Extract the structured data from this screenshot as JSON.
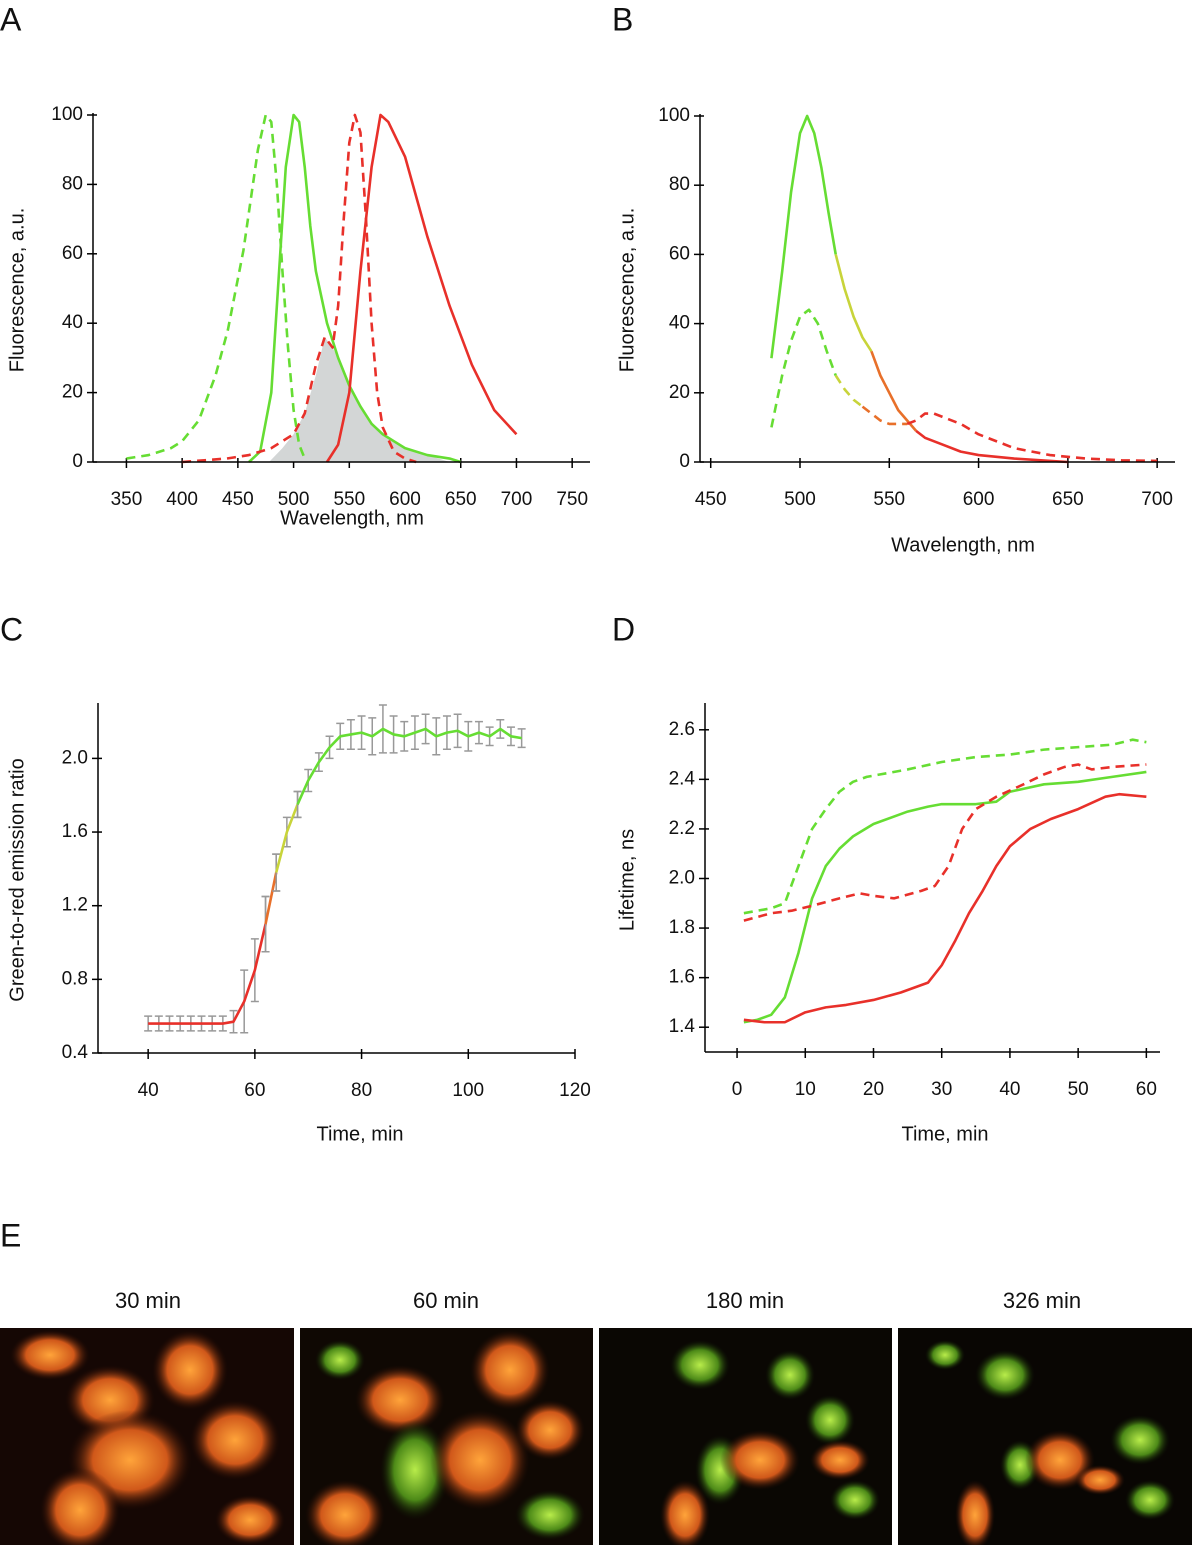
{
  "chart_data": [
    {
      "type": "line",
      "panel": "A",
      "xlabel": "Wavelength, nm",
      "ylabel": "Fluorescence, a.u.",
      "xlim": [
        320,
        766
      ],
      "ylim": [
        0,
        100
      ],
      "xticks": [
        350,
        400,
        450,
        500,
        550,
        600,
        650,
        700,
        750
      ],
      "yticks": [
        0,
        20,
        40,
        60,
        80,
        100
      ],
      "series": [
        {
          "color": "#d3d6d6",
          "fill": true,
          "x": [
            478,
            490,
            500,
            510,
            520,
            528,
            535,
            540,
            550,
            560,
            570,
            580,
            590,
            600,
            620,
            640
          ],
          "values": [
            0,
            4,
            8,
            14,
            25,
            36,
            33,
            30,
            22,
            16,
            11,
            8,
            6,
            4,
            2,
            0
          ]
        },
        {
          "color": "#66dd33",
          "dash": true,
          "x": [
            350,
            370,
            390,
            400,
            415,
            430,
            441,
            455,
            468,
            475,
            480,
            485,
            490,
            495,
            500,
            505,
            510
          ],
          "values": [
            1,
            2,
            4,
            6,
            12,
            25,
            38,
            61,
            90,
            100,
            98,
            80,
            55,
            33,
            15,
            5,
            1
          ]
        },
        {
          "color": "#66dd33",
          "x": [
            460,
            470,
            480,
            487,
            493,
            500,
            505,
            510,
            515,
            520,
            530,
            540,
            550,
            560,
            570,
            580,
            590,
            600,
            620,
            640,
            650
          ],
          "values": [
            0,
            3,
            20,
            55,
            85,
            100,
            98,
            85,
            68,
            55,
            40,
            30,
            22,
            16,
            11,
            8,
            6,
            4,
            2,
            1,
            0
          ]
        },
        {
          "color": "#e8302a",
          "dash": true,
          "x": [
            400,
            440,
            460,
            480,
            500,
            510,
            520,
            528,
            535,
            540,
            545,
            550,
            555,
            560,
            565,
            570,
            575,
            580,
            590,
            600,
            610
          ],
          "values": [
            0,
            1,
            2,
            4,
            8,
            14,
            28,
            36,
            33,
            45,
            70,
            92,
            100,
            95,
            70,
            40,
            20,
            10,
            3,
            1,
            0
          ]
        },
        {
          "color": "#e8302a",
          "x": [
            530,
            540,
            550,
            560,
            570,
            578,
            585,
            600,
            620,
            640,
            660,
            680,
            700
          ],
          "values": [
            0,
            5,
            20,
            55,
            85,
            100,
            98,
            88,
            65,
            45,
            28,
            15,
            8
          ]
        }
      ]
    },
    {
      "type": "line",
      "panel": "B",
      "xlabel": "Wavelength, nm",
      "ylabel": "Fluorescence, a.u.",
      "xlim": [
        444,
        710
      ],
      "ylim": [
        0,
        100
      ],
      "xticks": [
        450,
        500,
        550,
        600,
        650,
        700
      ],
      "yticks": [
        0,
        20,
        40,
        60,
        80,
        100
      ],
      "series": [
        {
          "color": "#66dd33",
          "x": [
            484,
            490,
            495,
            500,
            504,
            508,
            512,
            516,
            520
          ],
          "values": [
            30,
            55,
            78,
            95,
            100,
            95,
            85,
            72,
            60
          ]
        },
        {
          "color": "#c8d43a",
          "x": [
            520,
            525,
            530,
            535,
            540
          ],
          "values": [
            60,
            50,
            42,
            36,
            32
          ]
        },
        {
          "color": "#e8702a",
          "x": [
            540,
            545,
            550,
            555,
            560,
            565
          ],
          "values": [
            32,
            25,
            20,
            15,
            12,
            9
          ]
        },
        {
          "color": "#e8302a",
          "x": [
            565,
            570,
            580,
            590,
            600,
            620,
            650
          ],
          "values": [
            9,
            7,
            5,
            3,
            2,
            1,
            0
          ]
        },
        {
          "color": "#66dd33",
          "dash": true,
          "x": [
            484,
            490,
            495,
            500,
            505,
            510,
            515,
            520
          ],
          "values": [
            10,
            25,
            35,
            42,
            44,
            40,
            32,
            25
          ]
        },
        {
          "color": "#c8d43a",
          "dash": true,
          "x": [
            520,
            525,
            530,
            535
          ],
          "values": [
            25,
            21,
            18,
            16
          ]
        },
        {
          "color": "#e8702a",
          "dash": true,
          "x": [
            535,
            540,
            545,
            550,
            555,
            560
          ],
          "values": [
            16,
            14,
            12,
            11,
            11,
            11
          ]
        },
        {
          "color": "#e8302a",
          "dash": true,
          "x": [
            560,
            565,
            570,
            575,
            580,
            590,
            600,
            620,
            640,
            660,
            680,
            700
          ],
          "values": [
            11,
            12,
            14,
            14,
            13,
            11,
            8,
            4,
            2,
            1,
            0.5,
            0.3
          ]
        }
      ]
    },
    {
      "type": "line",
      "panel": "C",
      "xlabel": "Time, min",
      "ylabel": "Green-to-red emission ratio",
      "xlim": [
        30.6,
        120
      ],
      "ylim": [
        0.4,
        2.29
      ],
      "error_color": "#999999",
      "xticks": [
        40,
        60,
        80,
        100,
        120
      ],
      "yticks": [
        0.4,
        0.8,
        1.2,
        1.6,
        {
          "value": 2,
          "label": "2.0"
        }
      ],
      "series": [
        {
          "color": "#e8302a",
          "x": [
            40,
            42,
            44,
            46,
            48,
            50,
            52,
            54,
            56,
            58,
            60,
            62
          ],
          "values": [
            0.56,
            0.56,
            0.56,
            0.56,
            0.56,
            0.56,
            0.56,
            0.56,
            0.57,
            0.68,
            0.85,
            1.1
          ],
          "errors": [
            0.04,
            0.04,
            0.04,
            0.04,
            0.04,
            0.04,
            0.04,
            0.04,
            0.06,
            0.17,
            0.17,
            0.15
          ]
        },
        {
          "color": "#e8702a",
          "x": [
            62,
            64
          ],
          "values": [
            1.1,
            1.38
          ],
          "errors": [
            0.15,
            0.1
          ]
        },
        {
          "color": "#c8d43a",
          "x": [
            64,
            66,
            68
          ],
          "values": [
            1.38,
            1.6,
            1.75
          ],
          "errors": [
            0.1,
            0.08,
            0.07
          ]
        },
        {
          "color": "#66dd33",
          "x": [
            68,
            70,
            72,
            74,
            76,
            78,
            80,
            82,
            84,
            86,
            88,
            90,
            92,
            94,
            96,
            98,
            100,
            102,
            104,
            106,
            108,
            110
          ],
          "values": [
            1.75,
            1.88,
            1.98,
            2.06,
            2.12,
            2.13,
            2.14,
            2.12,
            2.16,
            2.13,
            2.12,
            2.14,
            2.16,
            2.12,
            2.14,
            2.15,
            2.12,
            2.14,
            2.12,
            2.16,
            2.12,
            2.11
          ],
          "errors": [
            0.07,
            0.06,
            0.05,
            0.06,
            0.07,
            0.08,
            0.09,
            0.1,
            0.13,
            0.1,
            0.08,
            0.09,
            0.08,
            0.1,
            0.09,
            0.09,
            0.08,
            0.06,
            0.05,
            0.05,
            0.05,
            0.05
          ]
        }
      ]
    },
    {
      "type": "line",
      "panel": "D",
      "xlabel": "Time, min",
      "ylabel": "Lifetime, ns",
      "xlim": [
        -4.7,
        62
      ],
      "ylim": [
        1.3,
        2.7
      ],
      "xticks": [
        0,
        10,
        20,
        30,
        40,
        50,
        60
      ],
      "yticks": [
        1.4,
        1.6,
        1.8,
        {
          "value": 2,
          "label": "2.0"
        },
        2.2,
        2.4,
        2.6
      ],
      "series": [
        {
          "color": "#66dd33",
          "dash": true,
          "x": [
            1,
            3,
            5,
            7,
            9,
            11,
            13,
            15,
            17,
            19,
            21,
            25,
            30,
            35,
            40,
            45,
            50,
            55,
            58,
            60
          ],
          "values": [
            1.86,
            1.87,
            1.88,
            1.9,
            2.05,
            2.2,
            2.28,
            2.35,
            2.39,
            2.41,
            2.42,
            2.44,
            2.47,
            2.49,
            2.5,
            2.52,
            2.53,
            2.54,
            2.56,
            2.55
          ]
        },
        {
          "color": "#66dd33",
          "x": [
            1,
            3,
            5,
            7,
            9,
            11,
            13,
            15,
            17,
            20,
            25,
            28,
            30,
            35,
            38,
            40,
            45,
            50,
            55,
            60
          ],
          "values": [
            1.42,
            1.43,
            1.45,
            1.52,
            1.7,
            1.92,
            2.05,
            2.12,
            2.17,
            2.22,
            2.27,
            2.29,
            2.3,
            2.3,
            2.31,
            2.35,
            2.38,
            2.39,
            2.41,
            2.43
          ]
        },
        {
          "color": "#e8302a",
          "dash": true,
          "x": [
            1,
            5,
            8,
            11,
            15,
            18,
            20,
            23,
            27,
            29,
            31,
            33,
            35,
            38,
            42,
            45,
            48,
            50,
            52,
            55,
            60
          ],
          "values": [
            1.83,
            1.86,
            1.87,
            1.89,
            1.92,
            1.94,
            1.93,
            1.92,
            1.95,
            1.97,
            2.05,
            2.2,
            2.28,
            2.33,
            2.38,
            2.42,
            2.45,
            2.46,
            2.44,
            2.45,
            2.46
          ]
        },
        {
          "color": "#e8302a",
          "x": [
            1,
            4,
            7,
            10,
            13,
            16,
            20,
            24,
            28,
            30,
            32,
            34,
            36,
            38,
            40,
            43,
            46,
            50,
            54,
            56,
            60
          ],
          "values": [
            1.43,
            1.42,
            1.42,
            1.46,
            1.48,
            1.49,
            1.51,
            1.54,
            1.58,
            1.65,
            1.75,
            1.86,
            1.95,
            2.05,
            2.13,
            2.2,
            2.24,
            2.28,
            2.33,
            2.34,
            2.33
          ]
        }
      ]
    }
  ],
  "panel_e": {
    "label": "E",
    "frames": [
      {
        "title": "30 min"
      },
      {
        "title": "60 min"
      },
      {
        "title": "180 min"
      },
      {
        "title": "326 min"
      }
    ]
  }
}
